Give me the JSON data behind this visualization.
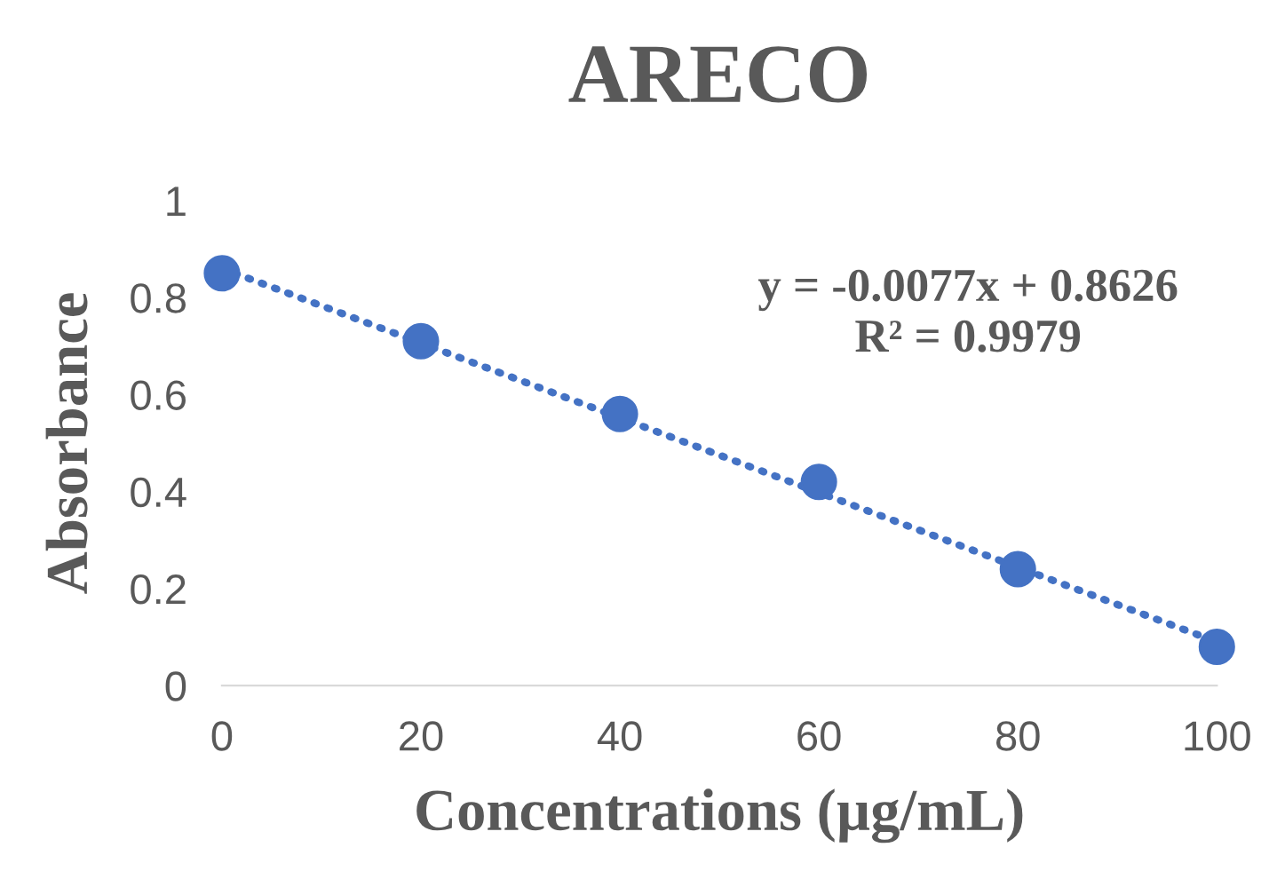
{
  "chart_data": {
    "type": "scatter",
    "title": "ARECO",
    "xlabel": "Concentrations (µg/mL)",
    "ylabel": "Absorbance",
    "x": [
      0,
      20,
      40,
      60,
      80,
      100
    ],
    "series": [
      {
        "color": "#4472c4",
        "marker": "circle",
        "values": [
          0.85,
          0.71,
          0.56,
          0.42,
          0.24,
          0.08
        ]
      },
      {
        "type": "line",
        "color": "#4472c4",
        "line_style": "dotted",
        "x": [
          0,
          100
        ],
        "values": [
          0.86,
          0.09
        ]
      }
    ],
    "annotations": [
      "y = -0.0077x + 0.8626\nR² = 0.9979"
    ],
    "xlim": [
      0,
      100
    ],
    "xticks": [
      0,
      20,
      40,
      60,
      80,
      100
    ],
    "ylim": [
      0,
      1
    ],
    "yticks": [
      0,
      0.2,
      0.4,
      0.6,
      0.8,
      1
    ],
    "grid": false,
    "legend": false
  }
}
